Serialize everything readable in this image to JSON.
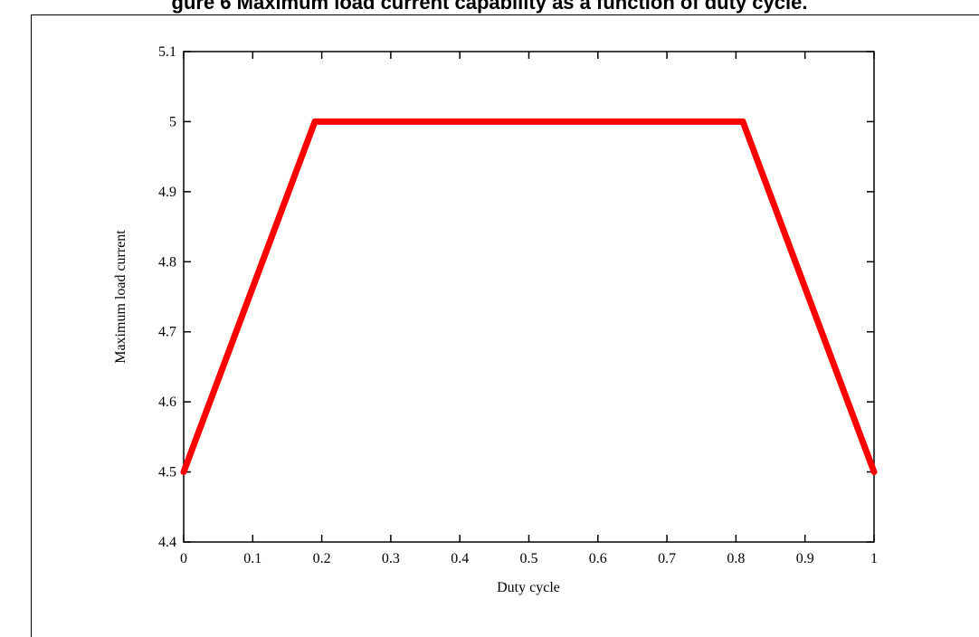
{
  "figure": {
    "title": "gure 6 Maximum load current capability as a function of duty cycle."
  },
  "chart_data": {
    "type": "line",
    "title": "",
    "xlabel": "Duty cycle",
    "ylabel": "Maximum load current",
    "xlim": [
      0,
      1
    ],
    "ylim": [
      4.4,
      5.1
    ],
    "x_ticks": [
      "0",
      "0.1",
      "0.2",
      "0.3",
      "0.4",
      "0.5",
      "0.6",
      "0.7",
      "0.8",
      "0.9",
      "1"
    ],
    "y_ticks": [
      "4.4",
      "4.5",
      "4.6",
      "4.7",
      "4.8",
      "4.9",
      "5",
      "5.1"
    ],
    "grid": false,
    "legend": "none",
    "series": [
      {
        "color": "#ff0000",
        "x": [
          0,
          0.19,
          0.81,
          1
        ],
        "y": [
          4.5,
          5.0,
          5.0,
          4.5
        ]
      }
    ]
  }
}
